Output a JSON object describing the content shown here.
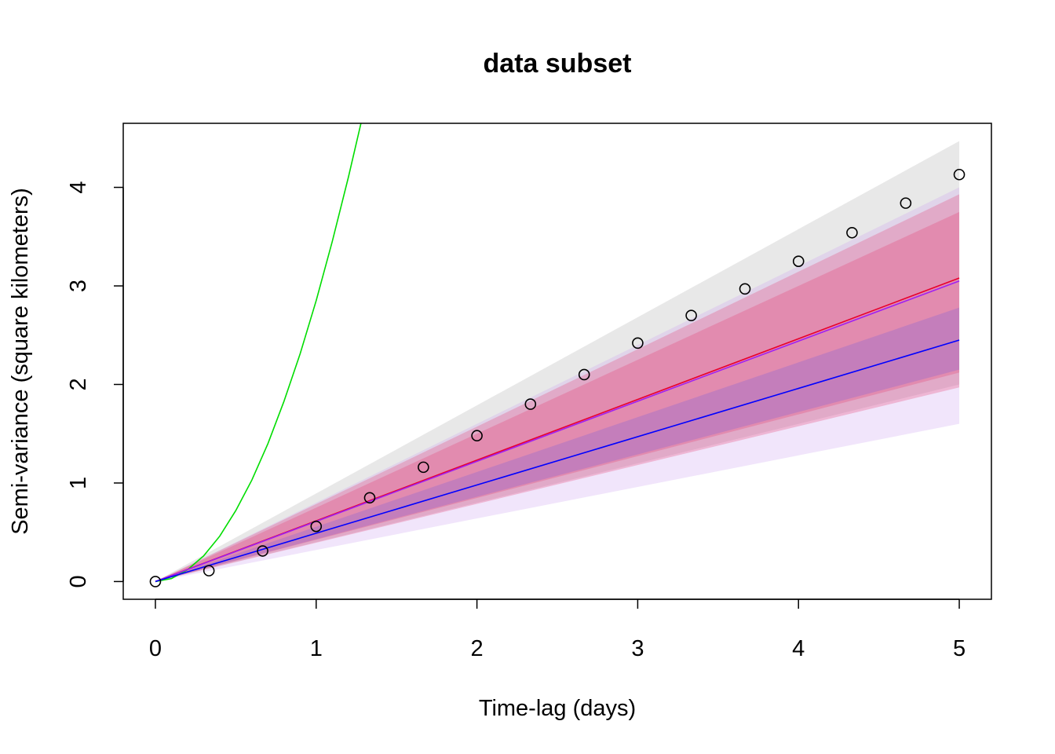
{
  "chart_data": {
    "type": "line",
    "title": "data subset",
    "xlabel": "Time-lag (days)",
    "ylabel": "Semi-variance (square kilometers)",
    "xlim": [
      -0.2,
      5.2
    ],
    "ylim": [
      -0.18,
      4.65
    ],
    "x_ticks": [
      "0",
      "1",
      "2",
      "3",
      "4",
      "5"
    ],
    "y_ticks": [
      "0",
      "1",
      "2",
      "3",
      "4"
    ],
    "grid": false,
    "legend": "none",
    "colors": {
      "points": "#000000",
      "green": "#00dd00",
      "red": "#e8002c",
      "purple": "#a020f0",
      "blue": "#0000ff",
      "grey_band": "rgba(150,150,150,0.22)",
      "pink_band": "rgba(230,60,110,0.28)",
      "lavender_band": "rgba(200,150,240,0.25)",
      "blue_band": "rgba(90,80,230,0.22)"
    },
    "points": {
      "x": [
        0,
        0.333,
        0.667,
        1,
        1.333,
        1.667,
        2,
        2.333,
        2.667,
        3,
        3.333,
        3.667,
        4,
        4.333,
        4.667,
        5
      ],
      "y": [
        0,
        0.11,
        0.31,
        0.56,
        0.85,
        1.16,
        1.48,
        1.8,
        2.1,
        2.42,
        2.7,
        2.97,
        3.25,
        3.54,
        3.84,
        4.13
      ]
    },
    "bands": [
      {
        "color": "grey_band",
        "x": [
          0,
          5
        ],
        "lower": [
          0,
          2.0
        ],
        "upper": [
          0,
          4.47
        ]
      },
      {
        "color": "lavender_band",
        "x": [
          0,
          5
        ],
        "lower": [
          0,
          1.6
        ],
        "upper": [
          0,
          4.0
        ]
      },
      {
        "color": "pink_band",
        "x": [
          0,
          5
        ],
        "lower": [
          0,
          1.97
        ],
        "upper": [
          0,
          3.93
        ]
      },
      {
        "color": "pink_band",
        "x": [
          0,
          5
        ],
        "lower": [
          0,
          2.12
        ],
        "upper": [
          0,
          3.75
        ]
      },
      {
        "color": "blue_band",
        "x": [
          0,
          5
        ],
        "lower": [
          0,
          2.15
        ],
        "upper": [
          0,
          2.78
        ]
      }
    ],
    "series": [
      {
        "color": "green",
        "x": [
          0,
          0.1,
          0.2,
          0.3,
          0.4,
          0.5,
          0.6,
          0.7,
          0.8,
          0.9,
          1.0,
          1.1,
          1.2,
          1.3
        ],
        "y": [
          0,
          0.03,
          0.12,
          0.26,
          0.46,
          0.72,
          1.03,
          1.4,
          1.83,
          2.31,
          2.85,
          3.45,
          4.1,
          4.8
        ]
      },
      {
        "color": "red",
        "x": [
          0,
          5
        ],
        "y": [
          0,
          3.08
        ]
      },
      {
        "color": "purple",
        "x": [
          0,
          5
        ],
        "y": [
          0,
          3.05
        ]
      },
      {
        "color": "blue",
        "x": [
          0,
          5
        ],
        "y": [
          0,
          2.45
        ]
      }
    ]
  }
}
